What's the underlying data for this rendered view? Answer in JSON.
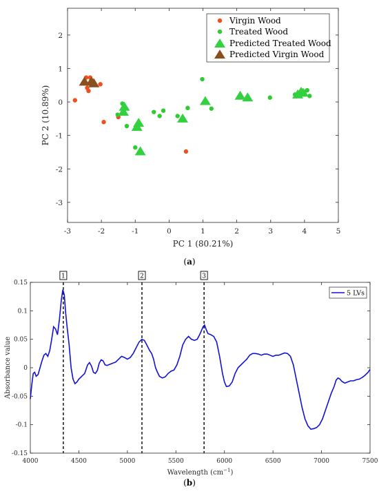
{
  "chart_data": [
    {
      "type": "scatter",
      "title": "",
      "xlabel": "PC 1 (80.21%)",
      "ylabel": "PC 2 (10.89%)",
      "xlim": [
        -3,
        5
      ],
      "ylim": [
        -3.6,
        2.8
      ],
      "xticks": [
        -3,
        -2,
        -1,
        0,
        1,
        2,
        3,
        4,
        5
      ],
      "yticks": [
        -3,
        -2,
        -1,
        0,
        1,
        2
      ],
      "grid": false,
      "legend_position": "top-right",
      "caption": "(a)",
      "series": [
        {
          "name": "Virgin Wood",
          "marker": "dot",
          "color": "#f04e1d",
          "points": [
            [
              -2.78,
              0.05
            ],
            [
              -2.45,
              0.73
            ],
            [
              -2.42,
              0.42
            ],
            [
              -2.38,
              0.33
            ],
            [
              -2.35,
              0.55
            ],
            [
              -2.33,
              0.73
            ],
            [
              -2.28,
              0.65
            ],
            [
              -2.25,
              0.58
            ],
            [
              -2.03,
              0.53
            ],
            [
              -1.93,
              -0.6
            ],
            [
              -1.5,
              -0.45
            ],
            [
              0.5,
              -1.48
            ]
          ]
        },
        {
          "name": "Treated Wood",
          "marker": "dot",
          "color": "#2ecc32",
          "points": [
            [
              -1.52,
              -0.38
            ],
            [
              -1.38,
              -0.05
            ],
            [
              -1.33,
              -0.18
            ],
            [
              -1.25,
              -0.72
            ],
            [
              -1.0,
              -1.36
            ],
            [
              -0.45,
              -0.3
            ],
            [
              -0.28,
              -0.42
            ],
            [
              -0.17,
              -0.26
            ],
            [
              0.25,
              -0.42
            ],
            [
              0.55,
              -0.18
            ],
            [
              0.98,
              0.68
            ],
            [
              1.25,
              -0.2
            ],
            [
              2.98,
              0.13
            ],
            [
              3.72,
              0.22
            ],
            [
              3.88,
              0.3
            ],
            [
              4.0,
              0.3
            ],
            [
              4.08,
              0.35
            ],
            [
              4.15,
              0.18
            ]
          ]
        },
        {
          "name": "Predicted Treated Wood",
          "marker": "triangle",
          "color": "#33d140",
          "points": [
            [
              -1.35,
              -0.3
            ],
            [
              -1.32,
              -0.15
            ],
            [
              -0.95,
              -0.75
            ],
            [
              -0.9,
              -0.63
            ],
            [
              -0.85,
              -1.48
            ],
            [
              0.4,
              -0.5
            ],
            [
              1.07,
              0.02
            ],
            [
              2.1,
              0.18
            ],
            [
              2.32,
              0.13
            ],
            [
              3.8,
              0.22
            ],
            [
              3.9,
              0.3
            ],
            [
              3.96,
              0.27
            ]
          ]
        },
        {
          "name": "Predicted Virgin Wood",
          "marker": "triangle",
          "color": "#8b4f1e",
          "points": [
            [
              -2.5,
              0.6
            ],
            [
              -2.3,
              0.6
            ],
            [
              -2.22,
              0.55
            ]
          ]
        }
      ]
    },
    {
      "type": "line",
      "title": "",
      "xlabel": "Wavelength (cm",
      "xlabel_sup": "−1",
      "xlabel_tail": ")",
      "ylabel": "Absorbance value",
      "xlim": [
        4000,
        7500
      ],
      "ylim": [
        -0.15,
        0.15
      ],
      "xticks": [
        4000,
        4500,
        5000,
        5500,
        6000,
        6500,
        7000,
        7500
      ],
      "yticks": [
        -0.15,
        -0.1,
        -0.05,
        0,
        0.05,
        0.1,
        0.15
      ],
      "ytick_labels": [
        "-0.15",
        "-0.1",
        "-0.05",
        "0",
        "0.05",
        "0.1",
        "0.15"
      ],
      "grid": false,
      "legend_position": "top-right",
      "caption": "(b)",
      "markers": [
        {
          "label": "1",
          "x": 4340
        },
        {
          "label": "2",
          "x": 5150
        },
        {
          "label": "3",
          "x": 5790
        }
      ],
      "series": [
        {
          "name": "5 LVs",
          "color": "#1010d8",
          "points": [
            [
              4000,
              -0.055
            ],
            [
              4015,
              -0.03
            ],
            [
              4030,
              -0.01
            ],
            [
              4045,
              -0.008
            ],
            [
              4060,
              -0.015
            ],
            [
              4080,
              -0.012
            ],
            [
              4100,
              0.0
            ],
            [
              4120,
              0.012
            ],
            [
              4140,
              0.022
            ],
            [
              4160,
              0.025
            ],
            [
              4180,
              0.02
            ],
            [
              4200,
              0.03
            ],
            [
              4220,
              0.05
            ],
            [
              4240,
              0.072
            ],
            [
              4260,
              0.068
            ],
            [
              4280,
              0.058
            ],
            [
              4300,
              0.085
            ],
            [
              4320,
              0.12
            ],
            [
              4335,
              0.137
            ],
            [
              4350,
              0.128
            ],
            [
              4365,
              0.095
            ],
            [
              4380,
              0.07
            ],
            [
              4400,
              0.04
            ],
            [
              4420,
              0.0
            ],
            [
              4440,
              -0.02
            ],
            [
              4460,
              -0.028
            ],
            [
              4480,
              -0.025
            ],
            [
              4500,
              -0.02
            ],
            [
              4530,
              -0.015
            ],
            [
              4560,
              -0.01
            ],
            [
              4590,
              0.005
            ],
            [
              4610,
              0.009
            ],
            [
              4630,
              0.003
            ],
            [
              4650,
              -0.008
            ],
            [
              4670,
              -0.01
            ],
            [
              4690,
              -0.005
            ],
            [
              4710,
              0.008
            ],
            [
              4730,
              0.014
            ],
            [
              4750,
              0.012
            ],
            [
              4770,
              0.005
            ],
            [
              4790,
              0.004
            ],
            [
              4820,
              0.006
            ],
            [
              4850,
              0.008
            ],
            [
              4880,
              0.01
            ],
            [
              4910,
              0.015
            ],
            [
              4940,
              0.02
            ],
            [
              4970,
              0.018
            ],
            [
              5000,
              0.015
            ],
            [
              5030,
              0.018
            ],
            [
              5060,
              0.025
            ],
            [
              5090,
              0.035
            ],
            [
              5120,
              0.045
            ],
            [
              5150,
              0.05
            ],
            [
              5175,
              0.048
            ],
            [
              5200,
              0.04
            ],
            [
              5230,
              0.03
            ],
            [
              5250,
              0.025
            ],
            [
              5270,
              0.015
            ],
            [
              5290,
              0.0
            ],
            [
              5310,
              -0.008
            ],
            [
              5330,
              -0.015
            ],
            [
              5360,
              -0.018
            ],
            [
              5390,
              -0.016
            ],
            [
              5420,
              -0.01
            ],
            [
              5450,
              -0.006
            ],
            [
              5480,
              -0.004
            ],
            [
              5510,
              0.005
            ],
            [
              5540,
              0.02
            ],
            [
              5570,
              0.04
            ],
            [
              5600,
              0.05
            ],
            [
              5630,
              0.055
            ],
            [
              5660,
              0.05
            ],
            [
              5690,
              0.048
            ],
            [
              5720,
              0.05
            ],
            [
              5750,
              0.06
            ],
            [
              5780,
              0.072
            ],
            [
              5795,
              0.075
            ],
            [
              5810,
              0.068
            ],
            [
              5830,
              0.06
            ],
            [
              5860,
              0.058
            ],
            [
              5890,
              0.055
            ],
            [
              5920,
              0.045
            ],
            [
              5950,
              0.02
            ],
            [
              5980,
              -0.01
            ],
            [
              6000,
              -0.025
            ],
            [
              6020,
              -0.033
            ],
            [
              6050,
              -0.032
            ],
            [
              6080,
              -0.025
            ],
            [
              6110,
              -0.01
            ],
            [
              6140,
              0.0
            ],
            [
              6170,
              0.005
            ],
            [
              6200,
              0.01
            ],
            [
              6230,
              0.015
            ],
            [
              6260,
              0.022
            ],
            [
              6290,
              0.025
            ],
            [
              6320,
              0.025
            ],
            [
              6350,
              0.024
            ],
            [
              6380,
              0.022
            ],
            [
              6410,
              0.024
            ],
            [
              6440,
              0.024
            ],
            [
              6470,
              0.022
            ],
            [
              6500,
              0.02
            ],
            [
              6530,
              0.022
            ],
            [
              6560,
              0.022
            ],
            [
              6590,
              0.024
            ],
            [
              6620,
              0.026
            ],
            [
              6650,
              0.025
            ],
            [
              6680,
              0.02
            ],
            [
              6710,
              0.005
            ],
            [
              6740,
              -0.02
            ],
            [
              6770,
              -0.045
            ],
            [
              6800,
              -0.07
            ],
            [
              6830,
              -0.09
            ],
            [
              6860,
              -0.102
            ],
            [
              6890,
              -0.108
            ],
            [
              6920,
              -0.107
            ],
            [
              6950,
              -0.105
            ],
            [
              6980,
              -0.1
            ],
            [
              7010,
              -0.09
            ],
            [
              7040,
              -0.075
            ],
            [
              7070,
              -0.06
            ],
            [
              7100,
              -0.045
            ],
            [
              7130,
              -0.033
            ],
            [
              7150,
              -0.022
            ],
            [
              7170,
              -0.018
            ],
            [
              7190,
              -0.02
            ],
            [
              7210,
              -0.024
            ],
            [
              7240,
              -0.027
            ],
            [
              7270,
              -0.025
            ],
            [
              7300,
              -0.023
            ],
            [
              7330,
              -0.023
            ],
            [
              7360,
              -0.021
            ],
            [
              7390,
              -0.02
            ],
            [
              7420,
              -0.017
            ],
            [
              7450,
              -0.013
            ],
            [
              7480,
              -0.008
            ],
            [
              7500,
              -0.003
            ]
          ]
        }
      ]
    }
  ]
}
